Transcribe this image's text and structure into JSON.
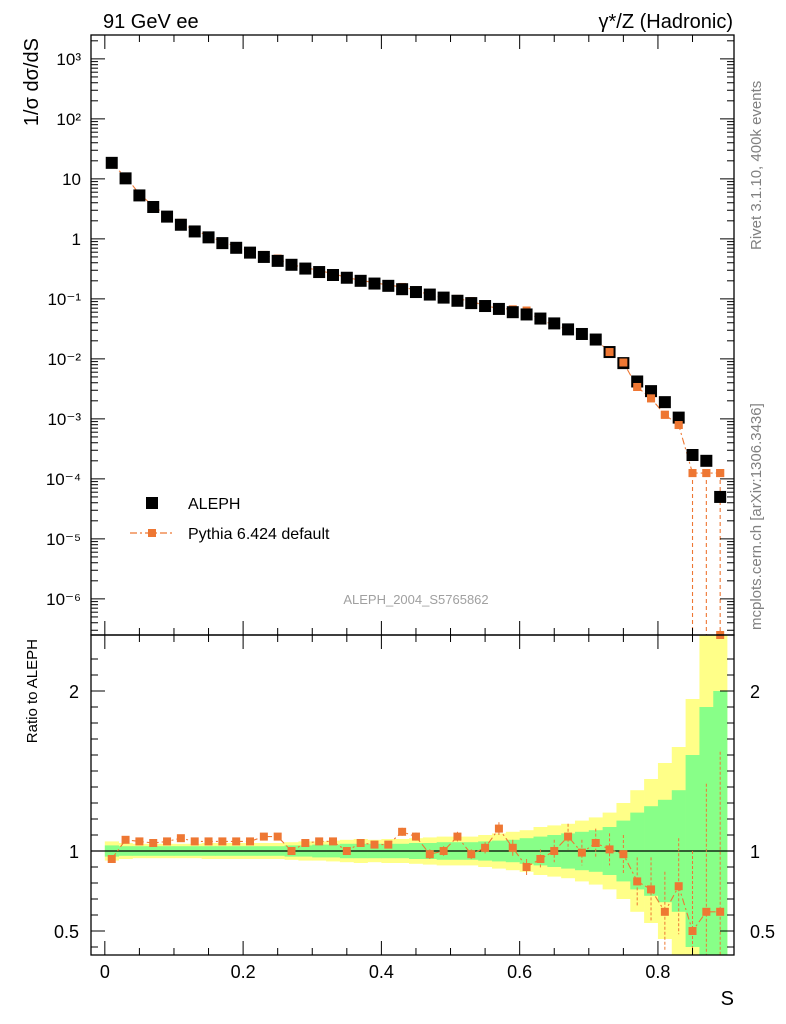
{
  "header": {
    "left_label": "91 GeV ee",
    "right_label": "γ*/Z (Hadronic)"
  },
  "side_text": {
    "rivet": "Rivet 3.1.10,  400k events",
    "mcplots": "mcplots.cern.ch [arXiv:1306.3436]"
  },
  "colors": {
    "data": "#000000",
    "mc": "#ee7733",
    "band_outer": "#ffff88",
    "band_inner": "#88ff88"
  },
  "chart_data": [
    {
      "type": "scatter",
      "panel": "main",
      "ylabel": "1/σ  dσ/dS",
      "yscale": "log",
      "ylim": [
        2.5e-07,
        2500
      ],
      "xlim": [
        -0.02,
        0.91
      ],
      "yticks": [
        "10⁻⁶",
        "10⁻⁵",
        "10⁻⁴",
        "10⁻³",
        "10⁻²",
        "10⁻¹",
        "1",
        "10",
        "10²",
        "10³"
      ],
      "watermark": "ALEPH_2004_S5765862",
      "legend": [
        "ALEPH",
        "Pythia 6.424 default"
      ],
      "legend_position": "bottom-left",
      "x": [
        0.01,
        0.03,
        0.05,
        0.07,
        0.09,
        0.11,
        0.13,
        0.15,
        0.17,
        0.19,
        0.21,
        0.23,
        0.25,
        0.27,
        0.29,
        0.31,
        0.33,
        0.35,
        0.37,
        0.39,
        0.41,
        0.43,
        0.45,
        0.47,
        0.49,
        0.51,
        0.53,
        0.55,
        0.57,
        0.59,
        0.61,
        0.63,
        0.65,
        0.67,
        0.69,
        0.71,
        0.73,
        0.75,
        0.77,
        0.79,
        0.81,
        0.83,
        0.85,
        0.87,
        0.89
      ],
      "series": [
        {
          "name": "ALEPH",
          "values": [
            18.5,
            10.2,
            5.3,
            3.4,
            2.35,
            1.72,
            1.33,
            1.06,
            0.85,
            0.71,
            0.59,
            0.5,
            0.43,
            0.37,
            0.32,
            0.28,
            0.25,
            0.225,
            0.2,
            0.18,
            0.165,
            0.145,
            0.13,
            0.118,
            0.105,
            0.093,
            0.085,
            0.076,
            0.068,
            0.06,
            0.055,
            0.047,
            0.039,
            0.031,
            0.026,
            0.021,
            0.013,
            0.0085,
            0.0042,
            0.0029,
            0.0019,
            0.00105,
            0.00025,
            0.0002,
            5e-05
          ]
        },
        {
          "name": "Pythia 6.424 default",
          "values": [
            17.6,
            10.9,
            5.6,
            3.55,
            2.45,
            1.85,
            1.39,
            1.12,
            0.89,
            0.75,
            0.62,
            0.54,
            0.47,
            0.37,
            0.335,
            0.295,
            0.265,
            0.225,
            0.205,
            0.185,
            0.17,
            0.158,
            0.14,
            0.115,
            0.105,
            0.1,
            0.092,
            0.076,
            0.07,
            0.067,
            0.064,
            0.044,
            0.037,
            0.031,
            0.026,
            0.021,
            0.013,
            0.0087,
            0.0034,
            0.0022,
            0.00117,
            0.00079,
            0.000125,
            0.000125,
            0.000125
          ]
        }
      ]
    },
    {
      "type": "line",
      "panel": "ratio",
      "ylabel": "Ratio to ALEPH",
      "xlabel": "S",
      "ylim": [
        0.35,
        2.35
      ],
      "xlim": [
        -0.02,
        0.91
      ],
      "xticks": [
        "0",
        "0.2",
        "0.4",
        "0.6",
        "0.8"
      ],
      "yticks": [
        "0.5",
        "1",
        "2"
      ],
      "x": [
        0.01,
        0.03,
        0.05,
        0.07,
        0.09,
        0.11,
        0.13,
        0.15,
        0.17,
        0.19,
        0.21,
        0.23,
        0.25,
        0.27,
        0.29,
        0.31,
        0.33,
        0.35,
        0.37,
        0.39,
        0.41,
        0.43,
        0.45,
        0.47,
        0.49,
        0.51,
        0.53,
        0.55,
        0.57,
        0.59,
        0.61,
        0.63,
        0.65,
        0.67,
        0.69,
        0.71,
        0.73,
        0.75,
        0.77,
        0.79,
        0.81,
        0.83,
        0.85,
        0.87,
        0.89
      ],
      "series": [
        {
          "name": "Pythia 6.424 default",
          "values": [
            0.95,
            1.07,
            1.06,
            1.05,
            1.06,
            1.08,
            1.06,
            1.06,
            1.06,
            1.06,
            1.06,
            1.09,
            1.09,
            1.0,
            1.05,
            1.06,
            1.06,
            1.0,
            1.05,
            1.04,
            1.04,
            1.12,
            1.09,
            0.98,
            1.0,
            1.09,
            0.98,
            1.02,
            1.14,
            1.02,
            0.9,
            0.95,
            1.0,
            1.09,
            0.99,
            1.05,
            1.01,
            0.98,
            0.81,
            0.76,
            0.62,
            0.78,
            0.5,
            0.62,
            0.62
          ]
        }
      ],
      "uncertainty_band": {
        "outer_half_width": [
          0.06,
          0.05,
          0.045,
          0.045,
          0.045,
          0.045,
          0.045,
          0.05,
          0.05,
          0.05,
          0.05,
          0.05,
          0.05,
          0.055,
          0.06,
          0.06,
          0.065,
          0.07,
          0.075,
          0.07,
          0.075,
          0.075,
          0.08,
          0.085,
          0.09,
          0.09,
          0.09,
          0.1,
          0.11,
          0.12,
          0.13,
          0.15,
          0.16,
          0.17,
          0.19,
          0.21,
          0.24,
          0.3,
          0.38,
          0.45,
          0.55,
          0.65,
          0.95,
          1.4,
          1.5
        ],
        "inner_half_width": [
          0.035,
          0.03,
          0.03,
          0.03,
          0.03,
          0.03,
          0.03,
          0.03,
          0.03,
          0.03,
          0.03,
          0.03,
          0.03,
          0.035,
          0.035,
          0.04,
          0.04,
          0.045,
          0.045,
          0.045,
          0.045,
          0.045,
          0.05,
          0.05,
          0.055,
          0.055,
          0.055,
          0.06,
          0.065,
          0.07,
          0.08,
          0.09,
          0.1,
          0.11,
          0.12,
          0.13,
          0.15,
          0.19,
          0.24,
          0.28,
          0.32,
          0.38,
          0.6,
          0.9,
          1.0
        ]
      }
    }
  ]
}
